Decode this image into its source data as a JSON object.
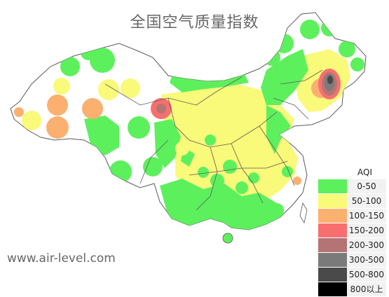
{
  "title": "全国空气质量指数",
  "watermark": "www.air-level.com",
  "colors": {
    "good": "#5df05d",
    "moderate": "#f9f97a",
    "unhealthy_sensitive": "#fbb070",
    "unhealthy": "#f86f6f",
    "very_unhealthy": "#b57474",
    "hazardous_1": "#7a7a7a",
    "hazardous_2": "#4a4a4a",
    "hazardous_3": "#000000",
    "boundary": "#5a5a5a",
    "outside": "#ffffff"
  },
  "legend": {
    "title": "AQI",
    "items": [
      {
        "label": "0-50",
        "color": "#5df05d"
      },
      {
        "label": "50-100",
        "color": "#f9f97a"
      },
      {
        "label": "100-150",
        "color": "#fbb070"
      },
      {
        "label": "150-200",
        "color": "#f86f6f"
      },
      {
        "label": "200-300",
        "color": "#b57474"
      },
      {
        "label": "300-500",
        "color": "#7a7a7a"
      },
      {
        "label": "500-800",
        "color": "#4a4a4a"
      },
      {
        "label": "800以上",
        "color": "#000000"
      }
    ]
  }
}
